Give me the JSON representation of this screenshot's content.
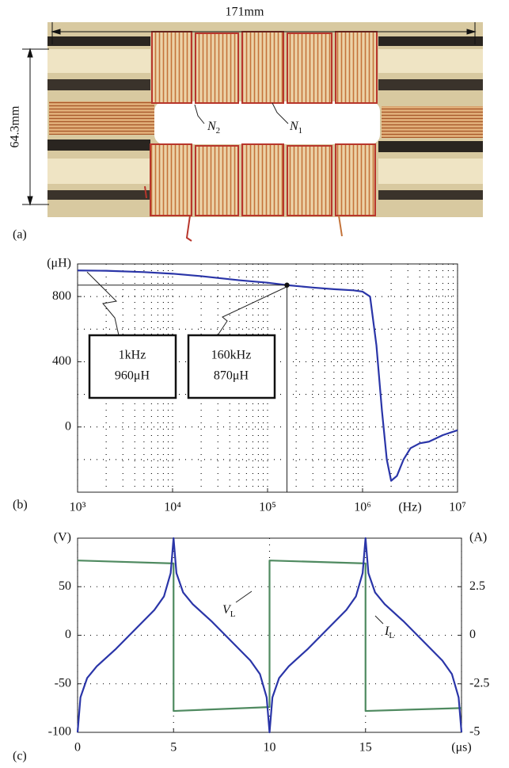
{
  "photo": {
    "label": "(a)",
    "width": "171mm",
    "height": "64.3mm",
    "windings": [
      {
        "main": "N",
        "sub": "2"
      },
      {
        "main": "N",
        "sub": "1"
      }
    ]
  },
  "chart_data": [
    {
      "type": "line",
      "label": "(b)",
      "log_x": true,
      "grid": true,
      "x": [
        1000,
        2000,
        5000,
        10000,
        20000,
        50000,
        100000,
        160000,
        300000,
        500000,
        800000,
        1000000,
        1200000,
        1400000,
        1600000,
        1800000,
        2000000,
        2300000,
        2700000,
        3200000,
        4000000,
        5000000,
        7000000,
        10000000
      ],
      "series": [
        {
          "color": "#2a35a8",
          "values": [
            960,
            958,
            950,
            940,
            925,
            900,
            885,
            870,
            855,
            845,
            838,
            830,
            800,
            500,
            100,
            -200,
            -330,
            -300,
            -200,
            -130,
            -100,
            -90,
            -50,
            -20
          ]
        }
      ],
      "xlim": [
        1000,
        10000000
      ],
      "xticks": [
        {
          "value": 1000,
          "label": "10³"
        },
        {
          "value": 10000,
          "label": "10⁴"
        },
        {
          "value": 100000,
          "label": "10⁵"
        },
        {
          "value": 1000000,
          "label": "10⁶"
        },
        {
          "value": 10000000,
          "label": "10⁷"
        }
      ],
      "xlabel": "(Hz)",
      "ylim": [
        -400,
        1000
      ],
      "yticks": [
        {
          "value": 1000,
          "label": "(μH)"
        },
        800,
        400,
        0
      ],
      "minor_yticks": [
        -200,
        200,
        600
      ],
      "annotations": [
        {
          "text": [
            "1kHz",
            "960μH"
          ],
          "x": 1000,
          "y": 960
        },
        {
          "text": [
            "160kHz",
            "870μH"
          ],
          "x": 160000,
          "y": 870,
          "marker": true
        }
      ]
    },
    {
      "type": "line",
      "label": "(c)",
      "grid": true,
      "series": [
        {
          "name": "V",
          "name_sub": "L",
          "color": "#4f8a60",
          "x": [
            0,
            5,
            5,
            10,
            10,
            15,
            15,
            20
          ],
          "values": [
            77,
            74,
            -78,
            -74,
            77,
            74,
            -78,
            -75
          ]
        },
        {
          "name": "I",
          "name_sub": "L",
          "color": "#2a35a8",
          "axis": "y2",
          "x": [
            0,
            0.15,
            0.5,
            1,
            2,
            3,
            4,
            4.5,
            4.85,
            5,
            5.15,
            5.5,
            6,
            7,
            8,
            9,
            9.5,
            9.85,
            10,
            10.15,
            10.5,
            11,
            12,
            13,
            14,
            14.5,
            14.85,
            15,
            15.15,
            15.5,
            16,
            17,
            18,
            19,
            19.5,
            19.85,
            20
          ],
          "values": [
            -5,
            -3.2,
            -2.2,
            -1.6,
            -0.7,
            0.3,
            1.3,
            2,
            3.2,
            5,
            3.2,
            2.2,
            1.6,
            0.7,
            -0.3,
            -1.3,
            -2,
            -3.2,
            -5,
            -3.2,
            -2.2,
            -1.6,
            -0.7,
            0.3,
            1.3,
            2,
            3.2,
            5,
            3.2,
            2.2,
            1.6,
            0.7,
            -0.3,
            -1.3,
            -2,
            -3.2,
            -5
          ]
        }
      ],
      "xlim": [
        0,
        20
      ],
      "xticks": [
        0,
        5,
        10,
        15,
        {
          "value": 20,
          "label": "(μs)"
        }
      ],
      "ylim": [
        -100,
        100
      ],
      "yticks": [
        {
          "value": 100,
          "label": "(V)"
        },
        50,
        0,
        -50,
        -100
      ],
      "y2lim": [
        -5,
        5
      ],
      "y2ticks": [
        {
          "value": 5,
          "label": "(A)"
        },
        2.5,
        0,
        -2.5,
        -5
      ]
    }
  ]
}
